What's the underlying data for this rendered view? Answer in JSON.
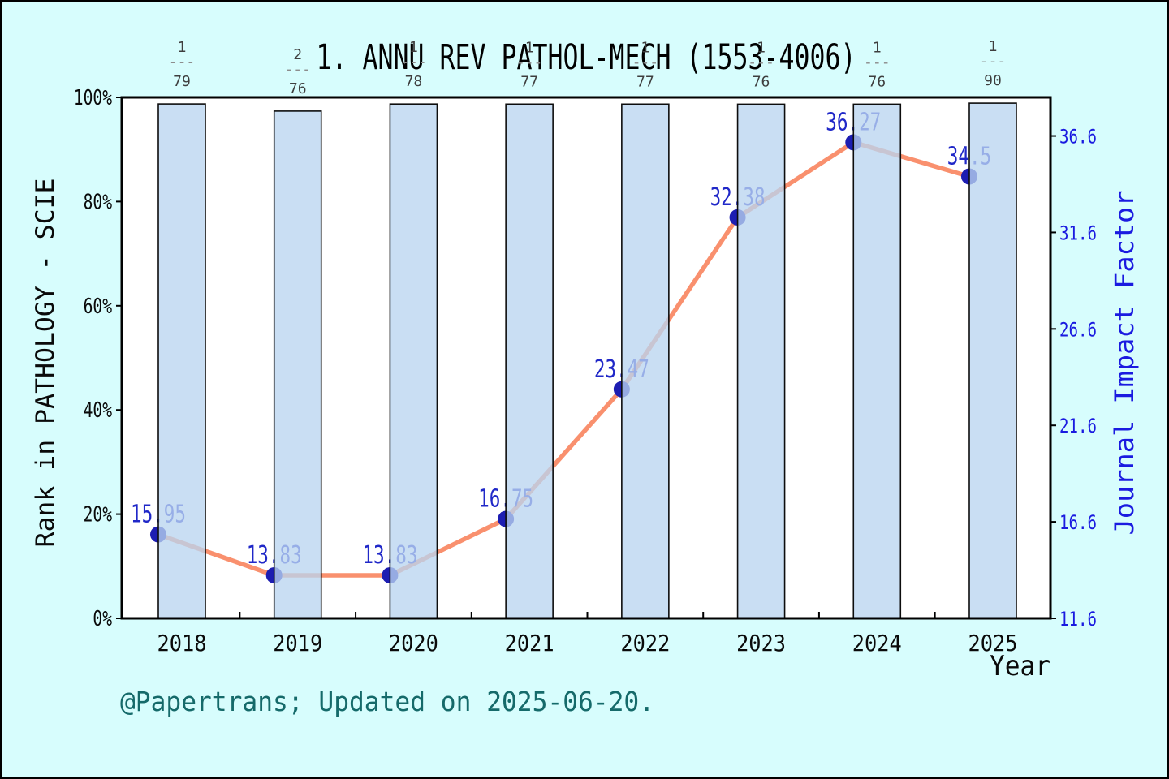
{
  "title": "1. ANNU REV PATHOL-MECH (1553-4006)",
  "footer": "@Papertrans; Updated on 2025-06-20.",
  "x_axis": {
    "title": "Year",
    "categories": [
      "2018",
      "2019",
      "2020",
      "2021",
      "2022",
      "2023",
      "2024",
      "2025"
    ]
  },
  "left_axis": {
    "title": "Rank in PATHOLOGY - SCIE",
    "tick_labels": [
      "0%",
      "20%",
      "40%",
      "60%",
      "80%",
      "100%"
    ],
    "tick_values": [
      0,
      20,
      40,
      60,
      80,
      100
    ]
  },
  "right_axis": {
    "title": "Journal Impact Factor",
    "tick_labels": [
      "11.6",
      "16.6",
      "21.6",
      "26.6",
      "31.6",
      "36.6"
    ],
    "tick_values": [
      11.6,
      16.6,
      21.6,
      26.6,
      31.6,
      36.6
    ]
  },
  "chart_data": {
    "type": "combo-bar-line",
    "categories": [
      "2018",
      "2019",
      "2020",
      "2021",
      "2022",
      "2023",
      "2024",
      "2025"
    ],
    "series": [
      {
        "name": "Rank in PATHOLOGY - SCIE",
        "type": "bar",
        "axis": "left",
        "rank": [
          1,
          2,
          1,
          1,
          1,
          1,
          1,
          1
        ],
        "total": [
          79,
          76,
          78,
          77,
          77,
          76,
          76,
          90
        ],
        "fraction_labels": [
          "1/79",
          "2/76",
          "1/78",
          "1/77",
          "1/77",
          "1/76",
          "1/76",
          "1/90"
        ]
      },
      {
        "name": "Journal Impact Factor",
        "type": "line",
        "axis": "right",
        "values": [
          15.95,
          13.83,
          13.83,
          16.75,
          23.47,
          32.38,
          36.27,
          34.5
        ],
        "labels": [
          "15.95",
          "13.83",
          "13.83",
          "16.75",
          "23.47",
          "32.38",
          "36.27",
          "34.5"
        ]
      }
    ],
    "ylim_left": [
      0,
      100
    ],
    "ylim_right": [
      11.6,
      38.6
    ],
    "grid": false,
    "legend": "none"
  },
  "colors": {
    "background": "#D7FDFD",
    "plot_background": "#ffffff",
    "bar_fill": "#B9D4F0",
    "bar_stroke": "#0d0d0d",
    "line": "#F9906E",
    "marker": "#1d1db2",
    "data_label": "#2028c8",
    "right_axis_blue": "#1a1ae0",
    "fraction_gray": "#3e3e3e",
    "footer_teal": "#156a6a"
  }
}
